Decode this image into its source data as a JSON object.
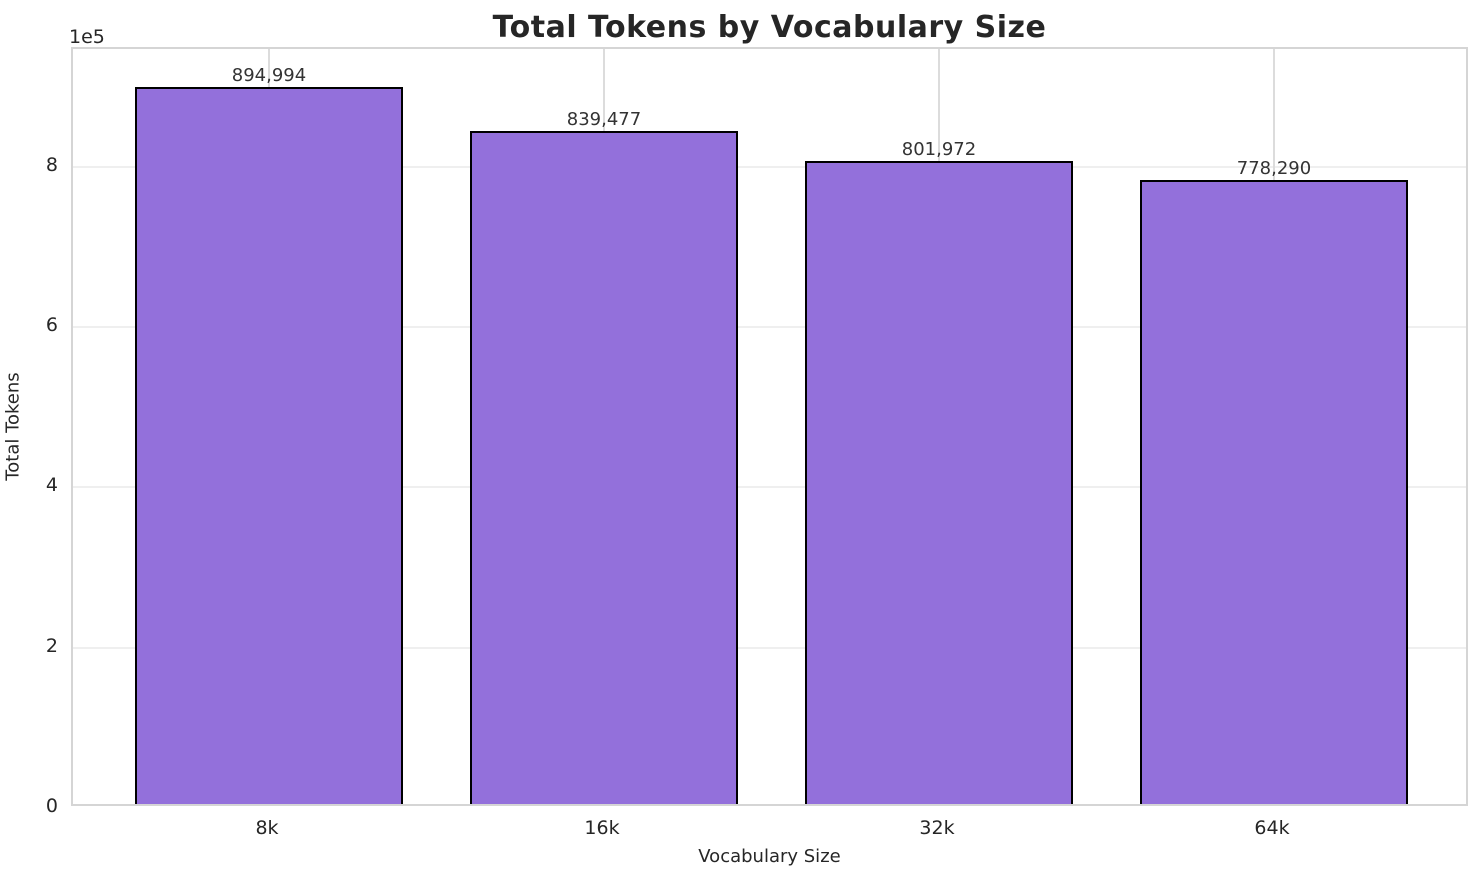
{
  "chart_data": {
    "type": "bar",
    "title": "Total Tokens by Vocabulary Size",
    "xlabel": "Vocabulary Size",
    "ylabel": "Total Tokens",
    "categories": [
      "8k",
      "16k",
      "32k",
      "64k"
    ],
    "values": [
      894994,
      839477,
      801972,
      778290
    ],
    "value_labels": [
      "894,994",
      "839,477",
      "801,972",
      "778,290"
    ],
    "ylim": [
      0,
      947000
    ],
    "yticks": [
      0,
      200000,
      400000,
      600000,
      800000
    ],
    "ytick_labels": [
      "0",
      "2",
      "4",
      "6",
      "8"
    ],
    "y_offset_label": "1e5",
    "grid": true,
    "legend_position": "none",
    "bar_color": "#9370DB",
    "bar_edge_color": "#000000"
  }
}
